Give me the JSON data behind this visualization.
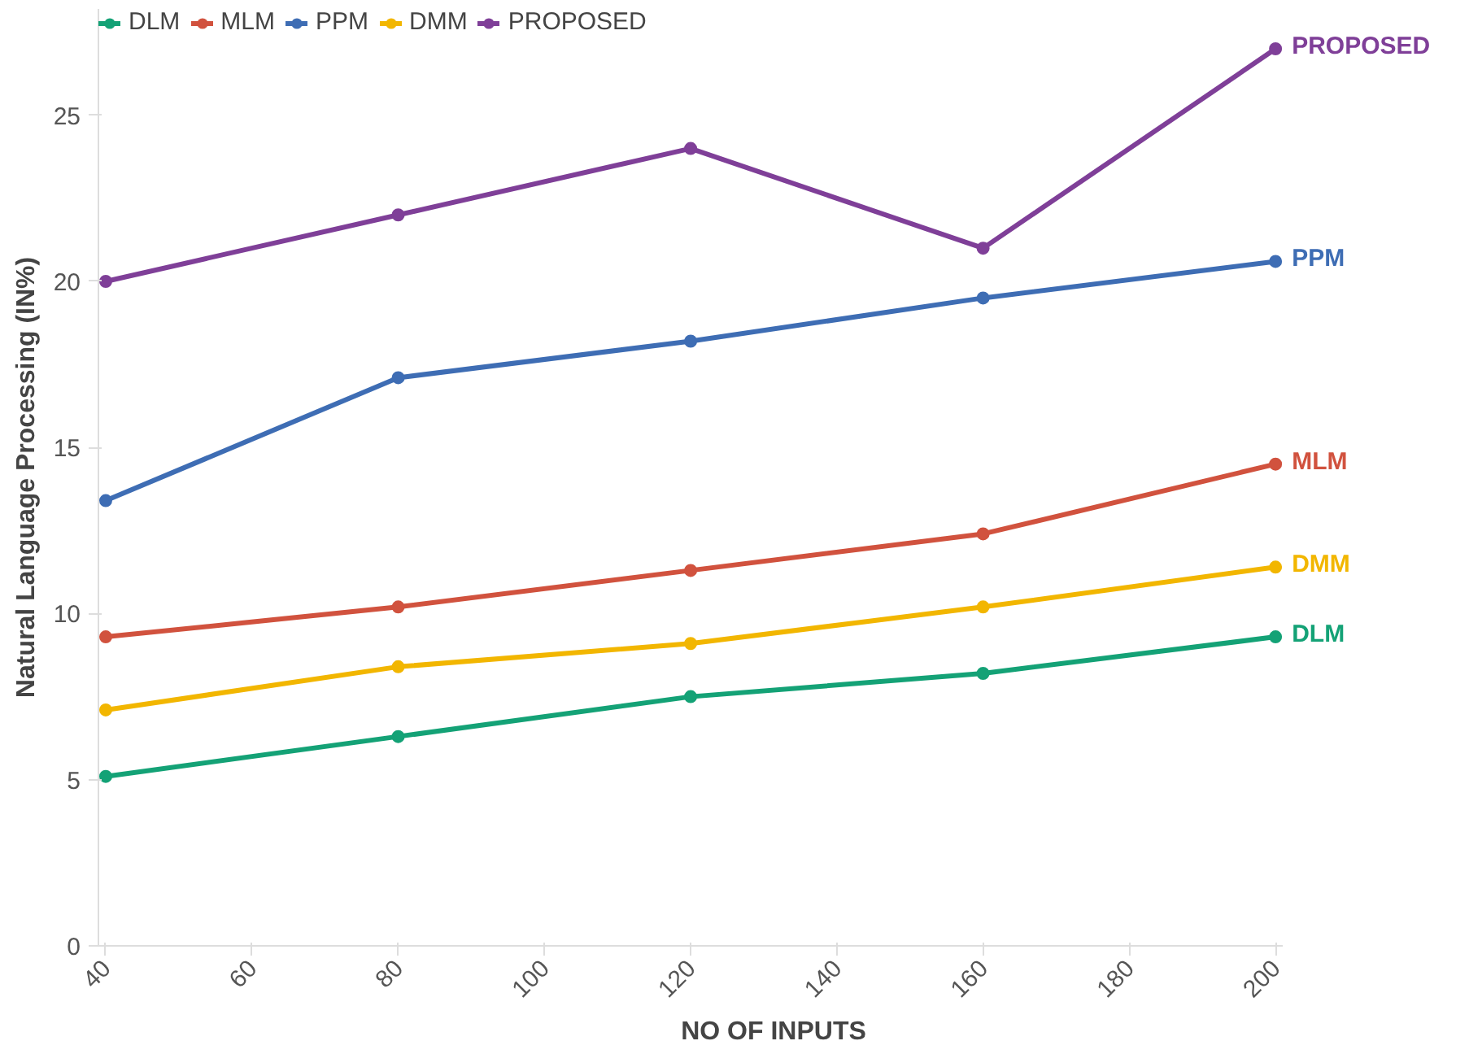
{
  "chart_data": {
    "type": "line",
    "xlabel": "NO OF INPUTS",
    "ylabel": "Natural Language Processing (IN%)",
    "x": [
      40,
      80,
      120,
      160,
      200
    ],
    "series": [
      {
        "name": "DLM",
        "color": "#14a276",
        "values": [
          5.1,
          6.3,
          7.5,
          8.2,
          9.3
        ]
      },
      {
        "name": "MLM",
        "color": "#d1523e",
        "values": [
          9.3,
          10.2,
          11.3,
          12.4,
          14.5
        ]
      },
      {
        "name": "PPM",
        "color": "#3e6db4",
        "values": [
          13.4,
          17.1,
          18.2,
          19.5,
          20.6
        ]
      },
      {
        "name": "DMM",
        "color": "#f2b600",
        "values": [
          7.1,
          8.4,
          9.1,
          10.2,
          11.4
        ]
      },
      {
        "name": "PROPOSED",
        "color": "#7f3f98",
        "values": [
          20,
          22,
          24,
          21,
          27
        ]
      }
    ],
    "xlim": [
      39,
      201
    ],
    "ylim": [
      0,
      28.2
    ],
    "xticks": [
      40,
      60,
      80,
      100,
      120,
      140,
      160,
      180,
      200
    ],
    "yticks": [
      0,
      5,
      10,
      15,
      20,
      25
    ],
    "marker": "circle",
    "legend": "top left",
    "grid": false
  }
}
